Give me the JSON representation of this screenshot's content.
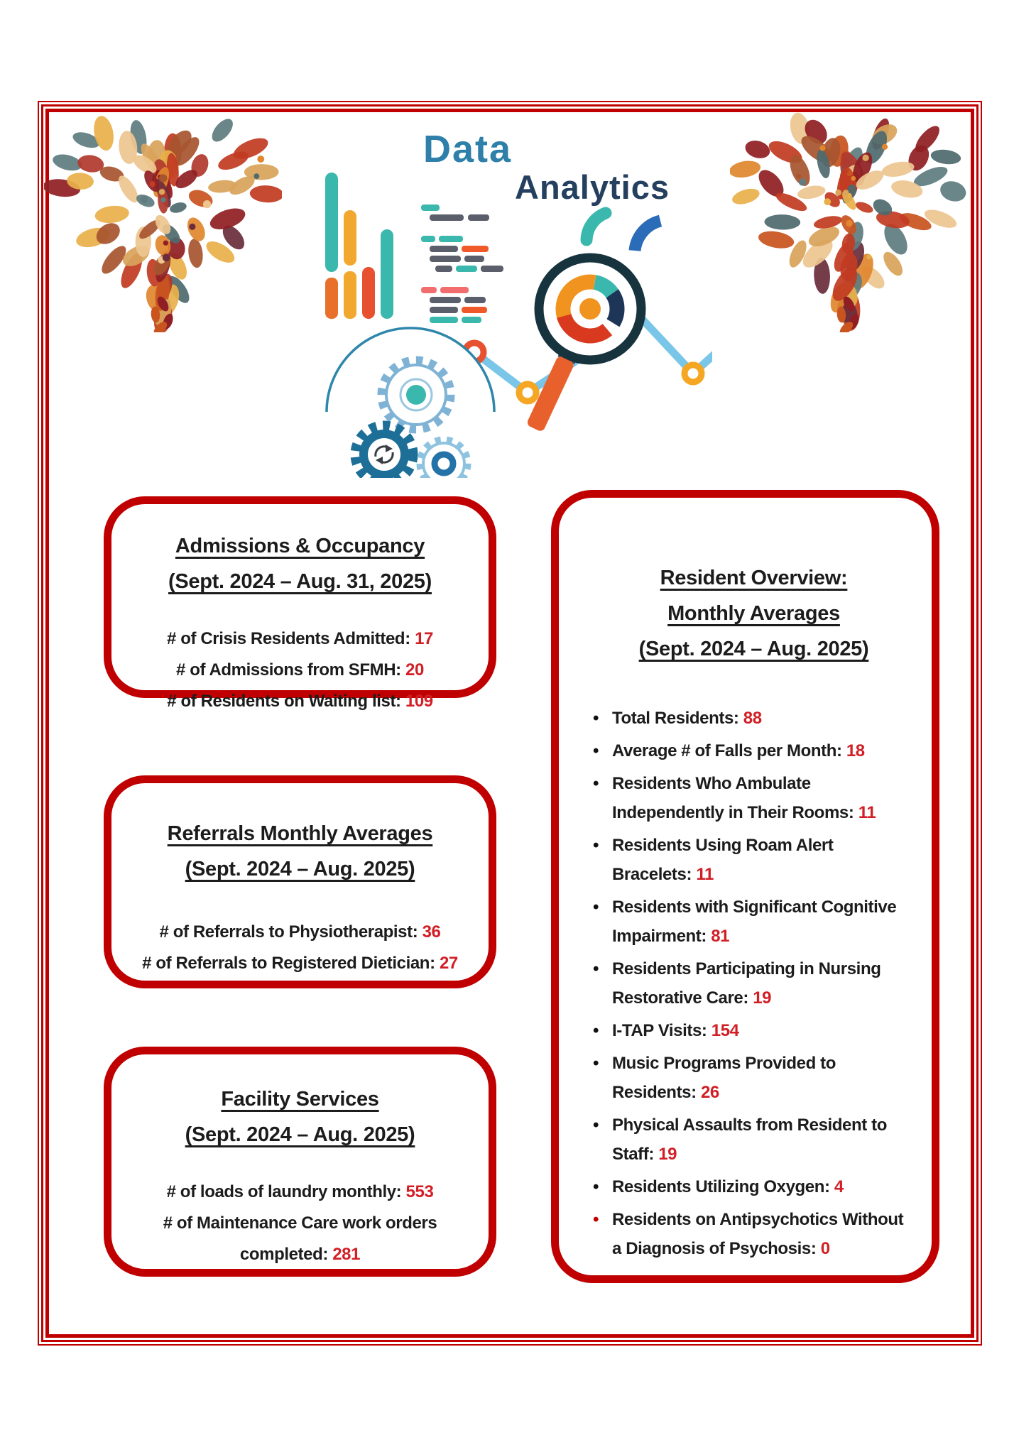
{
  "header": {
    "title_part1": "Data",
    "title_part2": "Analytics"
  },
  "colors": {
    "frame_red": "#c00000",
    "value_red": "#d21f26",
    "title_blue": "#2e7fa9",
    "title_navy": "#24405e"
  },
  "boxes": {
    "admissions": {
      "title": "Admissions & Occupancy",
      "subtitle": "(Sept. 2024 – Aug. 31, 2025)",
      "items": [
        {
          "label": "# of Crisis Residents Admitted:",
          "value": "17"
        },
        {
          "label": "# of Admissions from SFMH:",
          "value": "20"
        },
        {
          "label": "# of Residents on Waiting list:",
          "value": "109"
        }
      ]
    },
    "referrals": {
      "title": "Referrals Monthly Averages",
      "subtitle": "(Sept. 2024 – Aug. 2025)",
      "items": [
        {
          "label": "# of Referrals to Physiotherapist:",
          "value": "36"
        },
        {
          "label": "# of Referrals to Registered Dietician:",
          "value": "27"
        }
      ]
    },
    "facility": {
      "title": "Facility Services",
      "subtitle": "(Sept. 2024 – Aug. 2025)",
      "items": [
        {
          "label": "# of loads of laundry monthly:",
          "value": "553"
        },
        {
          "label": "# of Maintenance Care work orders completed:",
          "value": "281"
        }
      ]
    },
    "resident_overview": {
      "title_line1": "Resident Overview:",
      "title_line2": "Monthly Averages",
      "subtitle": "(Sept. 2024 – Aug. 2025)",
      "items": [
        {
          "label": "Total Residents:",
          "value": "88",
          "bullet": "black"
        },
        {
          "label": "Average # of Falls per Month:",
          "value": "18",
          "bullet": "black"
        },
        {
          "label": "Residents Who Ambulate Independently in Their Rooms:",
          "value": "11",
          "bullet": "black"
        },
        {
          "label": "Residents Using Roam Alert Bracelets:",
          "value": "11",
          "bullet": "black"
        },
        {
          "label": "Residents with Significant Cognitive Impairment:",
          "value": "81",
          "bullet": "black"
        },
        {
          "label": "Residents Participating in Nursing Restorative Care:",
          "value": "19",
          "bullet": "black"
        },
        {
          "label": "I-TAP Visits:",
          "value": "154",
          "bullet": "black"
        },
        {
          "label": "Music Programs Provided to Residents:",
          "value": "26",
          "bullet": "black"
        },
        {
          "label": "Physical Assaults from Resident to Staff:",
          "value": "19",
          "bullet": "black"
        },
        {
          "label": "Residents Utilizing Oxygen:",
          "value": "4",
          "bullet": "black"
        },
        {
          "label": "Residents on Antipsychotics Without a Diagnosis of Psychosis:",
          "value": "0",
          "bullet": "red"
        }
      ]
    }
  }
}
